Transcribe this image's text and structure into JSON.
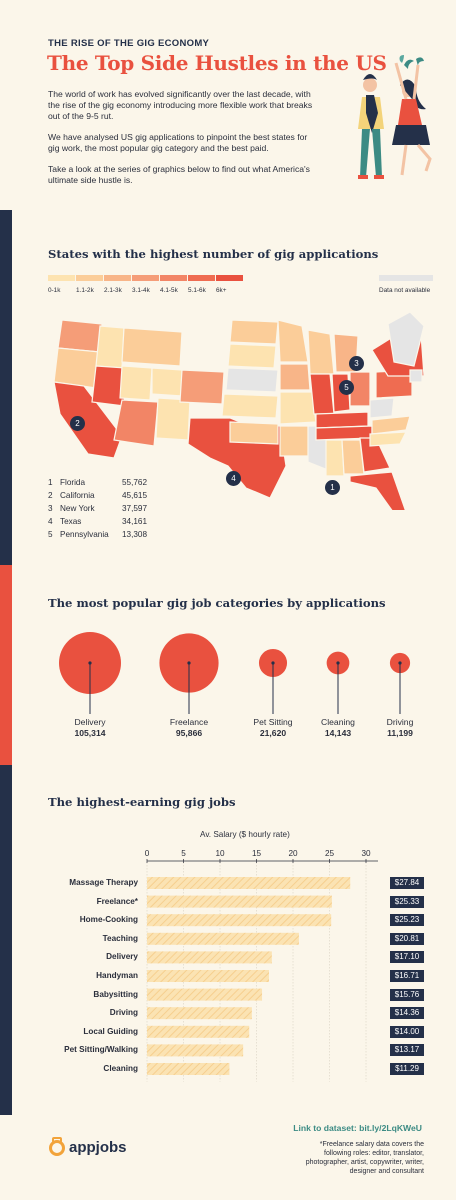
{
  "header": {
    "label": "THE RISE OF THE GIG ECONOMY",
    "title": "The Top Side Hustles in the US",
    "intro": [
      "The world of work has evolved significantly over the last decade, with the rise of the gig economy introducing more flexible work that breaks out of the 9-5 rut.",
      "We have analysed US gig applications to pinpoint the best states for gig work, the most popular gig category and the best paid.",
      "Take a look at the series of graphics below to find out what America's ultimate side hustle is."
    ]
  },
  "map_section": {
    "title": "States with the highest number of gig applications",
    "legend": [
      "0-1k",
      "1.1-2k",
      "2.1-3k",
      "3.1-4k",
      "4.1-5k",
      "5.1-6k",
      "6k+"
    ],
    "legend_colors": [
      "#fde3b0",
      "#fbcd99",
      "#f8b588",
      "#f59d78",
      "#f28566",
      "#ef6c51",
      "#e9513f"
    ],
    "na_label": "Data not available",
    "ranking": [
      {
        "rank": "1",
        "state": "Florida",
        "value": "55,762"
      },
      {
        "rank": "2",
        "state": "California",
        "value": "45,615"
      },
      {
        "rank": "3",
        "state": "New York",
        "value": "37,597"
      },
      {
        "rank": "4",
        "state": "Texas",
        "value": "34,161"
      },
      {
        "rank": "5",
        "state": "Pennsylvania",
        "value": "13,308"
      }
    ],
    "markers": [
      "1",
      "2",
      "3",
      "4",
      "5"
    ]
  },
  "categories_section": {
    "title": "The most popular gig job categories by applications",
    "items": [
      {
        "name": "Delivery",
        "value": "105,314",
        "num": 105314
      },
      {
        "name": "Freelance",
        "value": "95,866",
        "num": 95866
      },
      {
        "name": "Pet Sitting",
        "value": "21,620",
        "num": 21620
      },
      {
        "name": "Cleaning",
        "value": "14,143",
        "num": 14143
      },
      {
        "name": "Driving",
        "value": "11,199",
        "num": 11199
      }
    ]
  },
  "earnings_section": {
    "title": "The highest-earning gig jobs",
    "axis_title": "Av. Salary ($ hourly rate)"
  },
  "chart_data": {
    "type": "bar",
    "orientation": "horizontal",
    "title": "Av. Salary ($ hourly rate)",
    "categories": [
      "Massage Therapy",
      "Freelance*",
      "Home-Cooking",
      "Teaching",
      "Delivery",
      "Handyman",
      "Babysitting",
      "Driving",
      "Local Guiding",
      "Pet Sitting/Walking",
      "Cleaning"
    ],
    "values": [
      27.84,
      25.33,
      25.23,
      20.81,
      17.1,
      16.71,
      15.76,
      14.36,
      14.0,
      13.17,
      11.29
    ],
    "value_labels": [
      "$27.84",
      "$25.33",
      "$25.23",
      "$20.81",
      "$17.10",
      "$16.71",
      "$15.76",
      "$14.36",
      "$14.00",
      "$13.17",
      "$11.29"
    ],
    "xticks": [
      "0",
      "5",
      "10",
      "15",
      "20",
      "25",
      "30"
    ],
    "xlim": [
      0,
      30
    ],
    "grid": true,
    "colors": {
      "bar": "#fbe3b3",
      "hatch": "#f6cf8f",
      "label_bg": "#243049"
    }
  },
  "footer": {
    "link_label": "Link to dataset:",
    "link": "bit.ly/2LqKWeU",
    "note": "*Freelance salary data covers the following roles: editor, translator, photographer, artist, copywriter, writer, designer and consultant",
    "logo_text": "appjobs"
  },
  "colors": {
    "accent": "#e9513f",
    "navy": "#243049",
    "bg": "#fbf6ea",
    "teal": "#3c8b84"
  }
}
